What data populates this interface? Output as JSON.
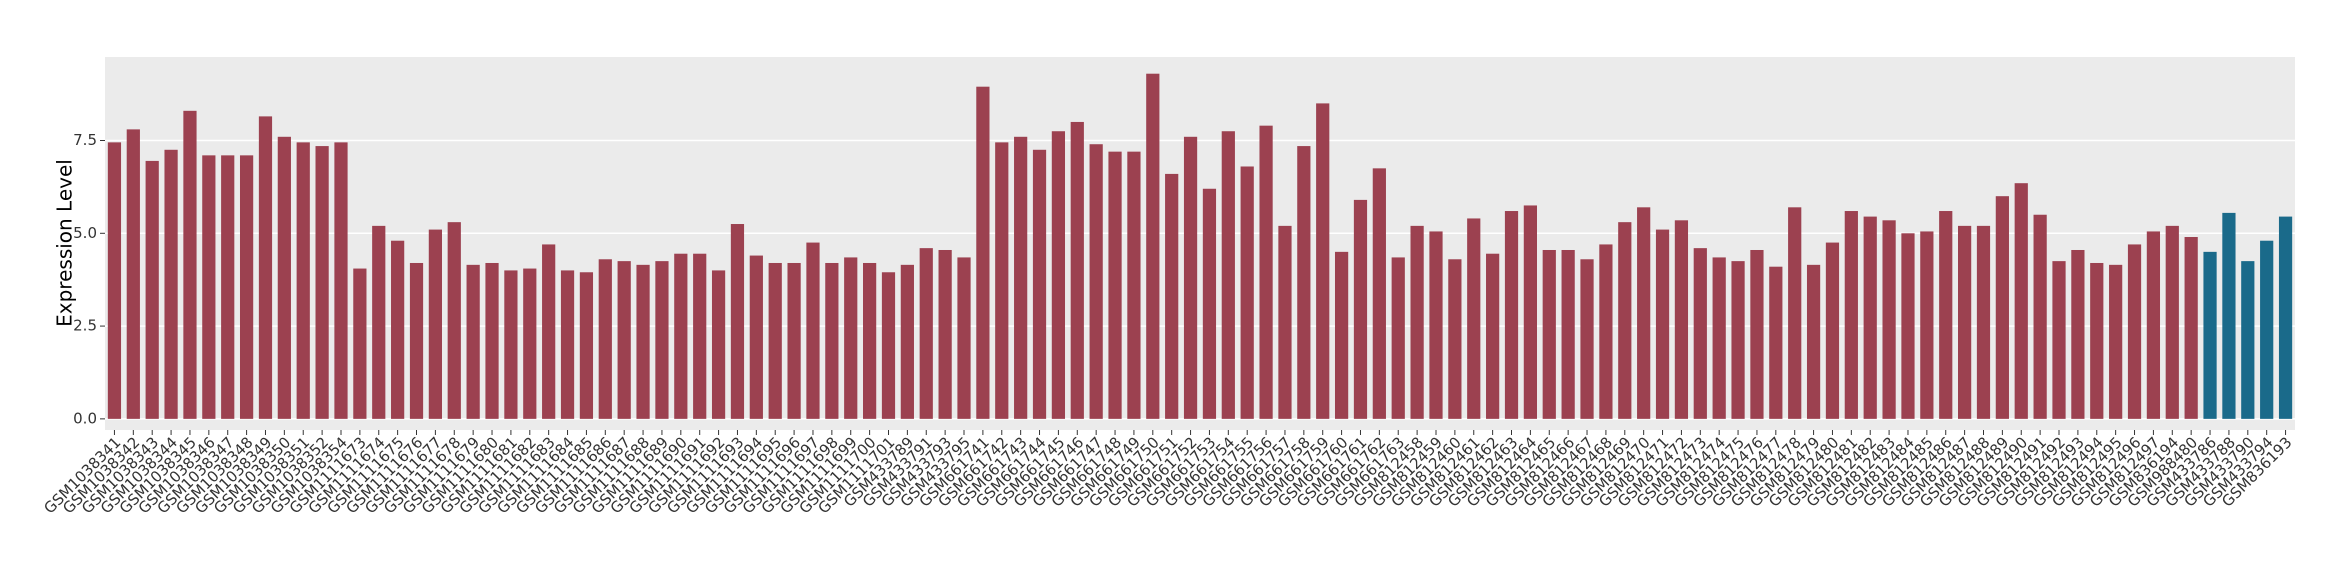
{
  "chart_data": {
    "type": "bar",
    "y_label": "Expression Level",
    "categories": [
      "GSM1038341",
      "GSM1038342",
      "GSM1038343",
      "GSM1038344",
      "GSM1038345",
      "GSM1038346",
      "GSM1038347",
      "GSM1038348",
      "GSM1038349",
      "GSM1038350",
      "GSM1038351",
      "GSM1038352",
      "GSM1038354",
      "GSM1111673",
      "GSM1111674",
      "GSM1111675",
      "GSM1111676",
      "GSM1111677",
      "GSM1111678",
      "GSM1111679",
      "GSM1111680",
      "GSM1111681",
      "GSM1111682",
      "GSM1111683",
      "GSM1111684",
      "GSM1111685",
      "GSM1111686",
      "GSM1111687",
      "GSM1111688",
      "GSM1111689",
      "GSM1111690",
      "GSM1111691",
      "GSM1111692",
      "GSM1111693",
      "GSM1111694",
      "GSM1111695",
      "GSM1111696",
      "GSM1111697",
      "GSM1111698",
      "GSM1111699",
      "GSM1111700",
      "GSM1111701",
      "GSM433789",
      "GSM433791",
      "GSM433793",
      "GSM433795",
      "GSM661741",
      "GSM661742",
      "GSM661743",
      "GSM661744",
      "GSM661745",
      "GSM661746",
      "GSM661747",
      "GSM661748",
      "GSM661749",
      "GSM661750",
      "GSM661751",
      "GSM661752",
      "GSM661753",
      "GSM661754",
      "GSM661755",
      "GSM661756",
      "GSM661757",
      "GSM661758",
      "GSM661759",
      "GSM661760",
      "GSM661761",
      "GSM661762",
      "GSM661763",
      "GSM812458",
      "GSM812459",
      "GSM812460",
      "GSM812461",
      "GSM812462",
      "GSM812463",
      "GSM812464",
      "GSM812465",
      "GSM812466",
      "GSM812467",
      "GSM812468",
      "GSM812469",
      "GSM812470",
      "GSM812471",
      "GSM812472",
      "GSM812473",
      "GSM812474",
      "GSM812475",
      "GSM812476",
      "GSM812477",
      "GSM812478",
      "GSM812479",
      "GSM812480",
      "GSM812481",
      "GSM812482",
      "GSM812483",
      "GSM812484",
      "GSM812485",
      "GSM812486",
      "GSM812487",
      "GSM812488",
      "GSM812489",
      "GSM812490",
      "GSM812491",
      "GSM812492",
      "GSM812493",
      "GSM812494",
      "GSM812495",
      "GSM812496",
      "GSM812497",
      "GSM836194",
      "GSM988480",
      "GSM433786",
      "GSM433788",
      "GSM433790",
      "GSM433794",
      "GSM836193"
    ],
    "values": [
      7.45,
      7.8,
      6.95,
      7.25,
      8.3,
      7.1,
      7.1,
      7.1,
      8.15,
      7.6,
      7.45,
      7.35,
      7.45,
      4.05,
      5.2,
      4.8,
      4.2,
      5.1,
      5.3,
      4.15,
      4.2,
      4.0,
      4.05,
      4.7,
      4.0,
      3.95,
      4.3,
      4.25,
      4.15,
      4.25,
      4.45,
      4.45,
      4.0,
      5.25,
      4.4,
      4.2,
      4.2,
      4.75,
      4.2,
      4.35,
      4.2,
      3.95,
      4.15,
      4.6,
      4.55,
      4.35,
      8.95,
      7.45,
      7.6,
      7.25,
      7.75,
      8.0,
      7.4,
      7.2,
      7.2,
      9.3,
      6.6,
      7.6,
      6.2,
      7.75,
      6.8,
      7.9,
      5.2,
      7.35,
      8.5,
      4.5,
      5.9,
      6.75,
      4.35,
      5.2,
      5.05,
      4.3,
      5.4,
      4.45,
      5.6,
      5.75,
      4.55,
      4.55,
      4.3,
      4.7,
      5.3,
      5.7,
      5.1,
      5.35,
      4.6,
      4.35,
      4.25,
      4.55,
      4.1,
      5.7,
      4.15,
      4.75,
      5.6,
      5.45,
      5.35,
      5.0,
      5.05,
      5.6,
      5.2,
      5.2,
      6.0,
      6.35,
      5.5,
      4.25,
      4.55,
      4.2,
      4.15,
      4.7,
      5.05,
      5.2,
      4.9,
      4.5,
      5.55,
      4.25,
      4.8,
      5.45
    ],
    "colors": [
      "#9c4150",
      "#9c4150",
      "#9c4150",
      "#9c4150",
      "#9c4150",
      "#9c4150",
      "#9c4150",
      "#9c4150",
      "#9c4150",
      "#9c4150",
      "#9c4150",
      "#9c4150",
      "#9c4150",
      "#9c4150",
      "#9c4150",
      "#9c4150",
      "#9c4150",
      "#9c4150",
      "#9c4150",
      "#9c4150",
      "#9c4150",
      "#9c4150",
      "#9c4150",
      "#9c4150",
      "#9c4150",
      "#9c4150",
      "#9c4150",
      "#9c4150",
      "#9c4150",
      "#9c4150",
      "#9c4150",
      "#9c4150",
      "#9c4150",
      "#9c4150",
      "#9c4150",
      "#9c4150",
      "#9c4150",
      "#9c4150",
      "#9c4150",
      "#9c4150",
      "#9c4150",
      "#9c4150",
      "#9c4150",
      "#9c4150",
      "#9c4150",
      "#9c4150",
      "#9c4150",
      "#9c4150",
      "#9c4150",
      "#9c4150",
      "#9c4150",
      "#9c4150",
      "#9c4150",
      "#9c4150",
      "#9c4150",
      "#9c4150",
      "#9c4150",
      "#9c4150",
      "#9c4150",
      "#9c4150",
      "#9c4150",
      "#9c4150",
      "#9c4150",
      "#9c4150",
      "#9c4150",
      "#9c4150",
      "#9c4150",
      "#9c4150",
      "#9c4150",
      "#9c4150",
      "#9c4150",
      "#9c4150",
      "#9c4150",
      "#9c4150",
      "#9c4150",
      "#9c4150",
      "#9c4150",
      "#9c4150",
      "#9c4150",
      "#9c4150",
      "#9c4150",
      "#9c4150",
      "#9c4150",
      "#9c4150",
      "#9c4150",
      "#9c4150",
      "#9c4150",
      "#9c4150",
      "#9c4150",
      "#9c4150",
      "#9c4150",
      "#9c4150",
      "#9c4150",
      "#9c4150",
      "#9c4150",
      "#9c4150",
      "#9c4150",
      "#9c4150",
      "#9c4150",
      "#9c4150",
      "#9c4150",
      "#9c4150",
      "#9c4150",
      "#9c4150",
      "#9c4150",
      "#9c4150",
      "#9c4150",
      "#9c4150",
      "#9c4150",
      "#9c4150",
      "#9c4150",
      "#1a6a8a",
      "#1a6a8a",
      "#1a6a8a",
      "#1a6a8a",
      "#1a6a8a"
    ],
    "ylim": [
      -0.3,
      9.75
    ],
    "yticks": [
      {
        "value": 0,
        "label": "0.0"
      },
      {
        "value": 2.5,
        "label": "2.5"
      },
      {
        "value": 5,
        "label": "5.0"
      },
      {
        "value": 7.5,
        "label": "7.5"
      }
    ],
    "grid": true
  }
}
